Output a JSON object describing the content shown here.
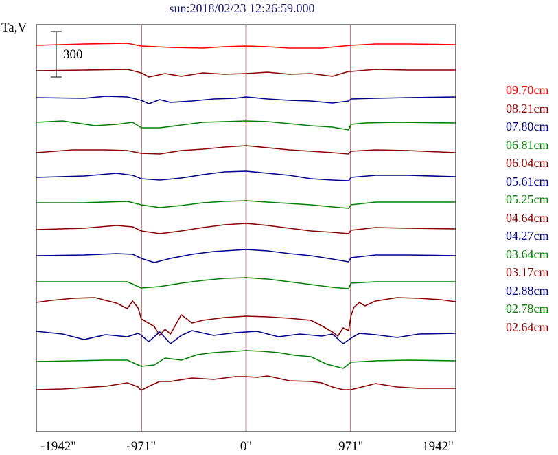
{
  "chart_data": {
    "type": "line",
    "title": "sun:2018/02/23 12:26:59.000",
    "ylabel": "Ta,V",
    "scale_bar_label": "300",
    "x_ticks": [
      "-1942\"",
      "-971\"",
      "0\"",
      "971\"",
      "1942\""
    ],
    "x_tick_values": [
      -1942,
      -971,
      0,
      971,
      1942
    ],
    "xlim": [
      -1942,
      1942
    ],
    "grid": false,
    "legend_placement": "right",
    "colors": {
      "red": "#ff0000",
      "darkred": "#8b0000",
      "navy": "#00008b",
      "green": "#008000",
      "limb_lines": "#3a0000",
      "frame": "#000000"
    },
    "series": [
      {
        "name": "09.70cm",
        "color": "#ff0000",
        "points": [
          [
            -1942,
            66
          ],
          [
            -1500,
            64
          ],
          [
            -1100,
            63
          ],
          [
            -971,
            67
          ],
          [
            -700,
            69
          ],
          [
            -400,
            70
          ],
          [
            -200,
            68
          ],
          [
            0,
            67
          ],
          [
            200,
            68
          ],
          [
            400,
            70
          ],
          [
            700,
            70
          ],
          [
            971,
            66
          ],
          [
            1200,
            64
          ],
          [
            1500,
            64
          ],
          [
            1942,
            65
          ]
        ]
      },
      {
        "name": "08.21cm",
        "color": "#8b0000",
        "points": [
          [
            -1942,
            103
          ],
          [
            -1500,
            102
          ],
          [
            -1100,
            101
          ],
          [
            -971,
            106
          ],
          [
            -900,
            112
          ],
          [
            -750,
            107
          ],
          [
            -600,
            111
          ],
          [
            -400,
            106
          ],
          [
            -200,
            108
          ],
          [
            0,
            107
          ],
          [
            200,
            105
          ],
          [
            400,
            108
          ],
          [
            600,
            107
          ],
          [
            800,
            111
          ],
          [
            950,
            104
          ],
          [
            971,
            104
          ],
          [
            1200,
            101
          ],
          [
            1500,
            102
          ],
          [
            1942,
            102
          ]
        ]
      },
      {
        "name": "07.80cm",
        "color": "#00008b",
        "points": [
          [
            -1942,
            142
          ],
          [
            -1500,
            143
          ],
          [
            -1300,
            140
          ],
          [
            -1100,
            141
          ],
          [
            -971,
            146
          ],
          [
            -900,
            151
          ],
          [
            -800,
            145
          ],
          [
            -700,
            149
          ],
          [
            -500,
            147
          ],
          [
            -300,
            144
          ],
          [
            -100,
            143
          ],
          [
            0,
            141
          ],
          [
            200,
            144
          ],
          [
            400,
            146
          ],
          [
            600,
            147
          ],
          [
            800,
            150
          ],
          [
            950,
            147
          ],
          [
            971,
            144
          ],
          [
            1200,
            143
          ],
          [
            1500,
            142
          ],
          [
            1942,
            141
          ]
        ]
      },
      {
        "name": "06.81cm",
        "color": "#008000",
        "points": [
          [
            -1942,
            178
          ],
          [
            -1700,
            176
          ],
          [
            -1400,
            183
          ],
          [
            -1200,
            181
          ],
          [
            -1050,
            178
          ],
          [
            -971,
            186
          ],
          [
            -800,
            186
          ],
          [
            -600,
            182
          ],
          [
            -400,
            178
          ],
          [
            -200,
            177
          ],
          [
            0,
            176
          ],
          [
            200,
            177
          ],
          [
            400,
            180
          ],
          [
            600,
            183
          ],
          [
            800,
            185
          ],
          [
            950,
            189
          ],
          [
            971,
            181
          ],
          [
            1100,
            179
          ],
          [
            1400,
            178
          ],
          [
            1942,
            179
          ]
        ]
      },
      {
        "name": "06.04cm",
        "color": "#8b0000",
        "points": [
          [
            -1942,
            222
          ],
          [
            -1600,
            218
          ],
          [
            -1300,
            218
          ],
          [
            -1100,
            219
          ],
          [
            -971,
            223
          ],
          [
            -800,
            224
          ],
          [
            -600,
            219
          ],
          [
            -400,
            217
          ],
          [
            -200,
            214
          ],
          [
            0,
            212
          ],
          [
            200,
            215
          ],
          [
            400,
            218
          ],
          [
            600,
            220
          ],
          [
            800,
            222
          ],
          [
            950,
            224
          ],
          [
            971,
            220
          ],
          [
            1200,
            218
          ],
          [
            1500,
            219
          ],
          [
            1942,
            222
          ]
        ]
      },
      {
        "name": "05.61cm",
        "color": "#00008b",
        "points": [
          [
            -1942,
            258
          ],
          [
            -1500,
            256
          ],
          [
            -1200,
            252
          ],
          [
            -1050,
            255
          ],
          [
            -971,
            260
          ],
          [
            -800,
            262
          ],
          [
            -600,
            259
          ],
          [
            -400,
            254
          ],
          [
            -200,
            250
          ],
          [
            0,
            249
          ],
          [
            200,
            252
          ],
          [
            400,
            255
          ],
          [
            600,
            260
          ],
          [
            800,
            262
          ],
          [
            950,
            263
          ],
          [
            971,
            258
          ],
          [
            1200,
            255
          ],
          [
            1500,
            255
          ],
          [
            1942,
            257
          ]
        ]
      },
      {
        "name": "05.25cm",
        "color": "#008000",
        "points": [
          [
            -1942,
            295
          ],
          [
            -1500,
            295
          ],
          [
            -1100,
            293
          ],
          [
            -971,
            298
          ],
          [
            -800,
            302
          ],
          [
            -600,
            299
          ],
          [
            -400,
            295
          ],
          [
            -200,
            293
          ],
          [
            0,
            292
          ],
          [
            200,
            294
          ],
          [
            400,
            296
          ],
          [
            600,
            298
          ],
          [
            800,
            301
          ],
          [
            950,
            303
          ],
          [
            971,
            298
          ],
          [
            1200,
            294
          ],
          [
            1500,
            294
          ],
          [
            1942,
            294
          ]
        ]
      },
      {
        "name": "04.64cm",
        "color": "#8b0000",
        "points": [
          [
            -1942,
            334
          ],
          [
            -1500,
            332
          ],
          [
            -1200,
            328
          ],
          [
            -1050,
            330
          ],
          [
            -971,
            336
          ],
          [
            -800,
            340
          ],
          [
            -600,
            336
          ],
          [
            -400,
            331
          ],
          [
            -200,
            327
          ],
          [
            0,
            325
          ],
          [
            200,
            328
          ],
          [
            400,
            332
          ],
          [
            600,
            336
          ],
          [
            800,
            338
          ],
          [
            950,
            340
          ],
          [
            971,
            335
          ],
          [
            1200,
            331
          ],
          [
            1500,
            332
          ],
          [
            1942,
            333
          ]
        ]
      },
      {
        "name": "04.27cm",
        "color": "#00008b",
        "points": [
          [
            -1942,
            372
          ],
          [
            -1500,
            371
          ],
          [
            -1200,
            369
          ],
          [
            -1050,
            370
          ],
          [
            -971,
            376
          ],
          [
            -850,
            382
          ],
          [
            -700,
            376
          ],
          [
            -500,
            370
          ],
          [
            -300,
            366
          ],
          [
            -100,
            364
          ],
          [
            0,
            363
          ],
          [
            200,
            365
          ],
          [
            400,
            369
          ],
          [
            600,
            372
          ],
          [
            800,
            377
          ],
          [
            950,
            381
          ],
          [
            971,
            375
          ],
          [
            1200,
            371
          ],
          [
            1500,
            371
          ],
          [
            1942,
            372
          ]
        ]
      },
      {
        "name": "03.64cm",
        "color": "#008000",
        "points": [
          [
            -1942,
            410
          ],
          [
            -1500,
            410
          ],
          [
            -1100,
            410
          ],
          [
            -971,
            419
          ],
          [
            -800,
            417
          ],
          [
            -600,
            412
          ],
          [
            -400,
            408
          ],
          [
            -200,
            405
          ],
          [
            0,
            404
          ],
          [
            200,
            406
          ],
          [
            400,
            410
          ],
          [
            600,
            414
          ],
          [
            800,
            418
          ],
          [
            950,
            420
          ],
          [
            971,
            412
          ],
          [
            1200,
            410
          ],
          [
            1500,
            410
          ],
          [
            1942,
            410
          ]
        ]
      },
      {
        "name": "03.17cm",
        "color": "#8b0000",
        "points": [
          [
            -1942,
            440
          ],
          [
            -1800,
            437
          ],
          [
            -1600,
            434
          ],
          [
            -1400,
            433
          ],
          [
            -1200,
            441
          ],
          [
            -1100,
            449
          ],
          [
            -1050,
            438
          ],
          [
            -1000,
            448
          ],
          [
            -971,
            464
          ],
          [
            -850,
            475
          ],
          [
            -800,
            488
          ],
          [
            -750,
            479
          ],
          [
            -700,
            486
          ],
          [
            -600,
            458
          ],
          [
            -500,
            470
          ],
          [
            -400,
            466
          ],
          [
            -200,
            462
          ],
          [
            0,
            460
          ],
          [
            200,
            461
          ],
          [
            400,
            463
          ],
          [
            600,
            466
          ],
          [
            700,
            474
          ],
          [
            800,
            483
          ],
          [
            850,
            489
          ],
          [
            900,
            477
          ],
          [
            950,
            481
          ],
          [
            971,
            460
          ],
          [
            1000,
            447
          ],
          [
            1050,
            440
          ],
          [
            1100,
            445
          ],
          [
            1200,
            438
          ],
          [
            1400,
            433
          ],
          [
            1600,
            434
          ],
          [
            1800,
            436
          ],
          [
            1942,
            439
          ]
        ]
      },
      {
        "name": "02.88cm",
        "color": "#00008b",
        "points": [
          [
            -1942,
            482
          ],
          [
            -1700,
            486
          ],
          [
            -1500,
            494
          ],
          [
            -1300,
            487
          ],
          [
            -1100,
            490
          ],
          [
            -1000,
            485
          ],
          [
            -971,
            488
          ],
          [
            -900,
            497
          ],
          [
            -800,
            483
          ],
          [
            -700,
            500
          ],
          [
            -600,
            488
          ],
          [
            -500,
            481
          ],
          [
            -300,
            488
          ],
          [
            -100,
            484
          ],
          [
            0,
            483
          ],
          [
            100,
            482
          ],
          [
            300,
            490
          ],
          [
            500,
            486
          ],
          [
            700,
            489
          ],
          [
            800,
            486
          ],
          [
            900,
            500
          ],
          [
            971,
            492
          ],
          [
            1050,
            485
          ],
          [
            1200,
            487
          ],
          [
            1400,
            491
          ],
          [
            1600,
            486
          ],
          [
            1942,
            485
          ]
        ]
      },
      {
        "name": "02.78cm",
        "color": "#008000",
        "points": [
          [
            -1942,
            526
          ],
          [
            -1600,
            525
          ],
          [
            -1300,
            524
          ],
          [
            -1100,
            524
          ],
          [
            -971,
            533
          ],
          [
            -850,
            531
          ],
          [
            -750,
            521
          ],
          [
            -600,
            524
          ],
          [
            -450,
            516
          ],
          [
            -300,
            513
          ],
          [
            -100,
            511
          ],
          [
            0,
            510
          ],
          [
            150,
            511
          ],
          [
            300,
            513
          ],
          [
            450,
            517
          ],
          [
            600,
            519
          ],
          [
            750,
            530
          ],
          [
            900,
            536
          ],
          [
            971,
            527
          ],
          [
            1200,
            525
          ],
          [
            1500,
            524
          ],
          [
            1942,
            525
          ]
        ]
      },
      {
        "name": "02.64cm",
        "color": "#8b0000",
        "points": [
          [
            -1942,
            567
          ],
          [
            -1700,
            566
          ],
          [
            -1500,
            564
          ],
          [
            -1300,
            562
          ],
          [
            -1100,
            557
          ],
          [
            -1000,
            563
          ],
          [
            -971,
            568
          ],
          [
            -900,
            562
          ],
          [
            -800,
            555
          ],
          [
            -700,
            555
          ],
          [
            -500,
            550
          ],
          [
            -300,
            552
          ],
          [
            -100,
            548
          ],
          [
            0,
            548
          ],
          [
            100,
            549
          ],
          [
            200,
            547
          ],
          [
            400,
            554
          ],
          [
            600,
            555
          ],
          [
            700,
            557
          ],
          [
            800,
            563
          ],
          [
            900,
            567
          ],
          [
            971,
            567
          ],
          [
            1100,
            562
          ],
          [
            1200,
            558
          ],
          [
            1400,
            563
          ],
          [
            1600,
            565
          ],
          [
            1942,
            565
          ]
        ]
      }
    ]
  }
}
